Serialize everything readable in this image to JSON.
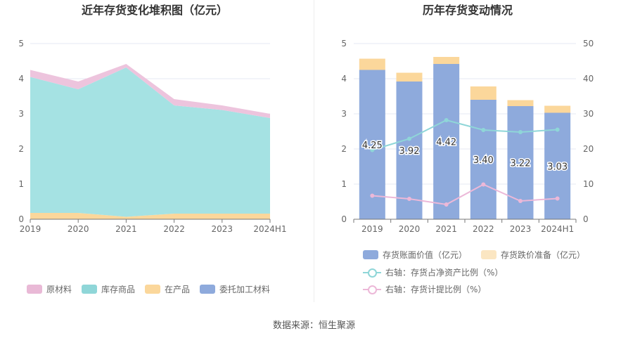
{
  "source": "数据来源：恒生聚源",
  "chart_data": [
    {
      "type": "area",
      "stacked": true,
      "title": "近年存货变化堆积图（亿元）",
      "categories": [
        "2019",
        "2020",
        "2021",
        "2022",
        "2023",
        "2024H1"
      ],
      "yticks": [
        "0",
        "1",
        "2",
        "3",
        "4",
        "5"
      ],
      "ylim": [
        0,
        5
      ],
      "series": [
        {
          "name": "委托加工材料",
          "values": [
            0.01,
            0.01,
            0.01,
            0.01,
            0.01,
            0.01
          ],
          "color": "#8eaadc"
        },
        {
          "name": "在产品",
          "values": [
            0.17,
            0.17,
            0.06,
            0.15,
            0.15,
            0.15
          ],
          "color": "#fbd79b"
        },
        {
          "name": "库存商品",
          "values": [
            3.87,
            3.52,
            4.25,
            3.08,
            2.95,
            2.72
          ],
          "color": "#a5e2e3"
        },
        {
          "name": "原材料",
          "values": [
            0.2,
            0.22,
            0.1,
            0.18,
            0.13,
            0.12
          ],
          "color": "#edc4dd"
        }
      ],
      "legend_order": [
        "原材料",
        "库存商品",
        "在产品",
        "委托加工材料"
      ],
      "legend_colors": {
        "原材料": "#e9b9d6",
        "库存商品": "#8fd6d8",
        "在产品": "#fbd79b",
        "委托加工材料": "#8eaadc"
      },
      "legend_position": "bottom",
      "grid": true
    },
    {
      "type": "bar",
      "stacked": true,
      "title": "历年存货变动情况",
      "categories": [
        "2019",
        "2020",
        "2021",
        "2022",
        "2023",
        "2024H1"
      ],
      "yticks_left": [
        "0",
        "1",
        "2",
        "3",
        "4",
        "5"
      ],
      "yticks_right": [
        "0",
        "10",
        "20",
        "30",
        "40",
        "50"
      ],
      "ylim_left": [
        0,
        5
      ],
      "ylim_right": [
        0,
        50
      ],
      "series": [
        {
          "name": "存货账面价值（亿元）",
          "values": [
            4.25,
            3.92,
            4.42,
            3.4,
            3.22,
            3.03
          ],
          "labels": [
            "4.25",
            "3.92",
            "4.42",
            "3.40",
            "3.22",
            "3.03"
          ],
          "color": "#8eaadc",
          "axis": "left"
        },
        {
          "name": "存货跌价准备（亿元）",
          "values": [
            0.32,
            0.25,
            0.2,
            0.38,
            0.17,
            0.2
          ],
          "color": "#fbd79b",
          "axis": "left"
        }
      ],
      "lines": [
        {
          "name": "右轴：存货占净资产比例（%）",
          "values": [
            19.7,
            22.9,
            28.2,
            25.4,
            24.8,
            25.5
          ],
          "color": "#8fd6d8",
          "axis": "right"
        },
        {
          "name": "右轴：存货计提比例（%）",
          "values": [
            6.7,
            5.8,
            4.2,
            9.9,
            5.2,
            5.9
          ],
          "color": "#ecb8d8",
          "axis": "right"
        }
      ],
      "legend_position": "bottom",
      "grid": true
    }
  ]
}
